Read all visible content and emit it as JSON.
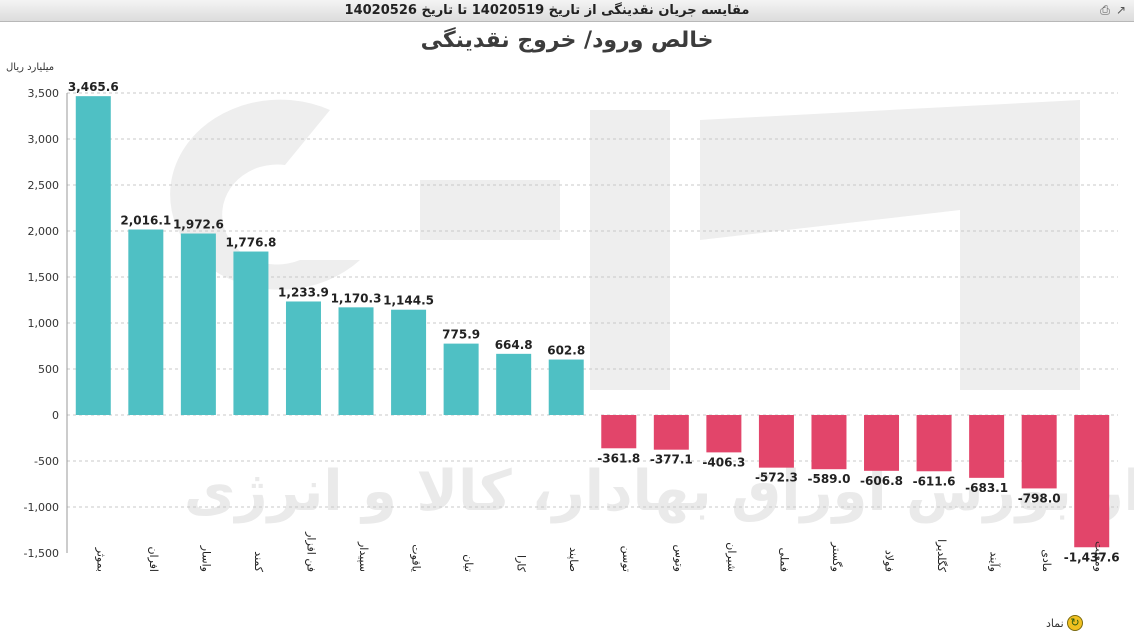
{
  "window": {
    "title": "مقایسه جریان نقدینگی از تاریخ 14020519 تا تاریخ 14020526"
  },
  "chart_data": {
    "type": "bar",
    "title": "خالص ورود/ خروج نقدینگی",
    "ylabel": "میلیارد ریال",
    "xlabel": "نماد",
    "ylim": [
      -1500,
      3500
    ],
    "yticks": [
      -1500,
      -1000,
      -500,
      0,
      500,
      1000,
      1500,
      2000,
      2500,
      3000,
      3500
    ],
    "grid": true,
    "positive_color": "#4fc0c4",
    "negative_color": "#e2456a",
    "categories": [
      "بموثر",
      "افران",
      "واسار",
      "کمند",
      "فن افزار",
      "سپیدار",
      "یاقوت",
      "تیان",
      "کارا",
      "صاپند",
      "توسن",
      "وتوس",
      "شیران",
      "فملی",
      "وگستر",
      "فولاد",
      "کگلدیرا",
      "وآیند",
      "مادی",
      "ومعلت"
    ],
    "values": [
      3465.6,
      2016.1,
      1972.6,
      1776.8,
      1233.9,
      1170.3,
      1144.5,
      775.9,
      664.8,
      602.8,
      -361.8,
      -377.1,
      -406.3,
      -572.3,
      -589.0,
      -606.8,
      -611.6,
      -683.1,
      -798.0,
      -1437.6
    ],
    "labels": [
      "3,465.6",
      "2,016.1",
      "1,972.6",
      "1,776.8",
      "1,233.9",
      "1,170.3",
      "1,144.5",
      "775.9",
      "664.8",
      "602.8",
      "-361.8",
      "-377.1",
      "-406.3",
      "-572.3",
      "-589.0",
      "-606.8",
      "-611.6",
      "-683.1",
      "-798.0",
      "-1,437.6"
    ]
  },
  "watermark": {
    "text": "کارگزار بورس اوراق بهادار، کالا و انرژی"
  }
}
